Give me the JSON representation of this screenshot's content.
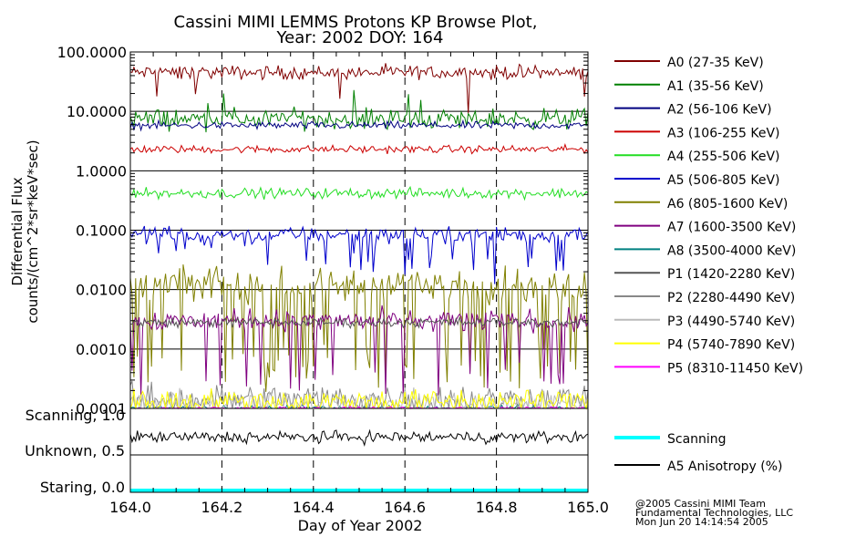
{
  "chart_data": {
    "type": "line",
    "title_line1": "Cassini MIMI LEMMS Protons KP Browse Plot,",
    "title_line2": "Year: 2002 DOY: 164",
    "xlabel": "Day of Year 2002",
    "ylabel_line1": "Differential Flux",
    "ylabel_line2": "counts/(cm^2*sr*keV*sec)",
    "xlim": [
      164.0,
      165.0
    ],
    "x_ticks": [
      "164.0",
      "164.2",
      "164.4",
      "164.6",
      "164.8",
      "165.0"
    ],
    "y_scale": "log",
    "ylim": [
      0.0001,
      100.0
    ],
    "y_ticks": [
      "100.0000",
      "10.0000",
      "1.0000",
      "0.1000",
      "0.0100",
      "0.0010",
      "0.0001"
    ],
    "grid": true,
    "legend_position": "right",
    "series": [
      {
        "name": "A0 (27-35 KeV)",
        "color": "#800000",
        "level": 45,
        "noise": 0.22,
        "spike_rate": 0.01,
        "spike_mul": 0.6
      },
      {
        "name": "A1 (35-56 KeV)",
        "color": "#008000",
        "level": 7.5,
        "noise": 0.32,
        "spike_rate": 0.05,
        "spike_mul": 1.7
      },
      {
        "name": "A2 (56-106 KeV)",
        "color": "#000080",
        "level": 5.8,
        "noise": 0.12,
        "spike_rate": 0.0,
        "spike_mul": 1.0
      },
      {
        "name": "A3 (106-255 KeV)",
        "color": "#cc0000",
        "level": 2.3,
        "noise": 0.12,
        "spike_rate": 0.0,
        "spike_mul": 1.0
      },
      {
        "name": "A4 (255-506 KeV)",
        "color": "#22dd22",
        "level": 0.42,
        "noise": 0.16,
        "spike_rate": 0.0,
        "spike_mul": 1.0
      },
      {
        "name": "A5 (506-805 KeV)",
        "color": "#0000cc",
        "level": 0.085,
        "noise": 0.25,
        "spike_rate": 0.12,
        "spike_mul": 0.35
      },
      {
        "name": "A6 (805-1600 KeV)",
        "color": "#808000",
        "level": 0.012,
        "noise": 0.55,
        "spike_rate": 0.2,
        "spike_mul": 0.04
      },
      {
        "name": "A7 (1600-3500 KeV)",
        "color": "#800080",
        "level": 0.003,
        "noise": 0.35,
        "spike_rate": 0.1,
        "spike_mul": 0.08
      },
      {
        "name": "A8 (3500-4000 KeV)",
        "color": "#008080",
        "level": 0.0001,
        "noise": 0.1,
        "spike_rate": 0.0,
        "spike_mul": 1.0
      },
      {
        "name": "P1 (1420-2280 KeV)",
        "color": "#555555",
        "level": 0.0028,
        "noise": 0.15,
        "spike_rate": 0.0,
        "spike_mul": 1.0
      },
      {
        "name": "P2 (2280-4490 KeV)",
        "color": "#888888",
        "level": 0.00014,
        "noise": 0.5,
        "spike_rate": 0.0,
        "spike_mul": 1.0
      },
      {
        "name": "P3 (4490-5740 KeV)",
        "color": "#bbbbbb",
        "level": 0.00012,
        "noise": 0.4,
        "spike_rate": 0.0,
        "spike_mul": 1.0
      },
      {
        "name": "P4 (5740-7890 KeV)",
        "color": "#ffff00",
        "level": 0.00013,
        "noise": 0.4,
        "spike_rate": 0.0,
        "spike_mul": 1.0
      },
      {
        "name": "P5 (8310-11450 KeV)",
        "color": "#ff00ff",
        "level": 0.0001,
        "noise": 0.05,
        "spike_rate": 0.0,
        "spike_mul": 1.0
      }
    ],
    "lower_panel": {
      "y_labels": [
        "Scanning, 1.0",
        "Unknown, 0.5",
        "Staring, 0.0"
      ],
      "ylim": [
        0.0,
        1.0
      ],
      "series": [
        {
          "name": "Scanning",
          "color": "#00ffff",
          "value": 0.0
        },
        {
          "name": "A5 Anisotropy (%)",
          "color": "#000000",
          "value": 0.75,
          "noise": 0.07
        }
      ]
    },
    "credits": [
      "@2005 Cassini MIMI Team",
      "Fundamental Technologies, LLC",
      "Mon Jun 20 14:14:54 2005"
    ]
  }
}
